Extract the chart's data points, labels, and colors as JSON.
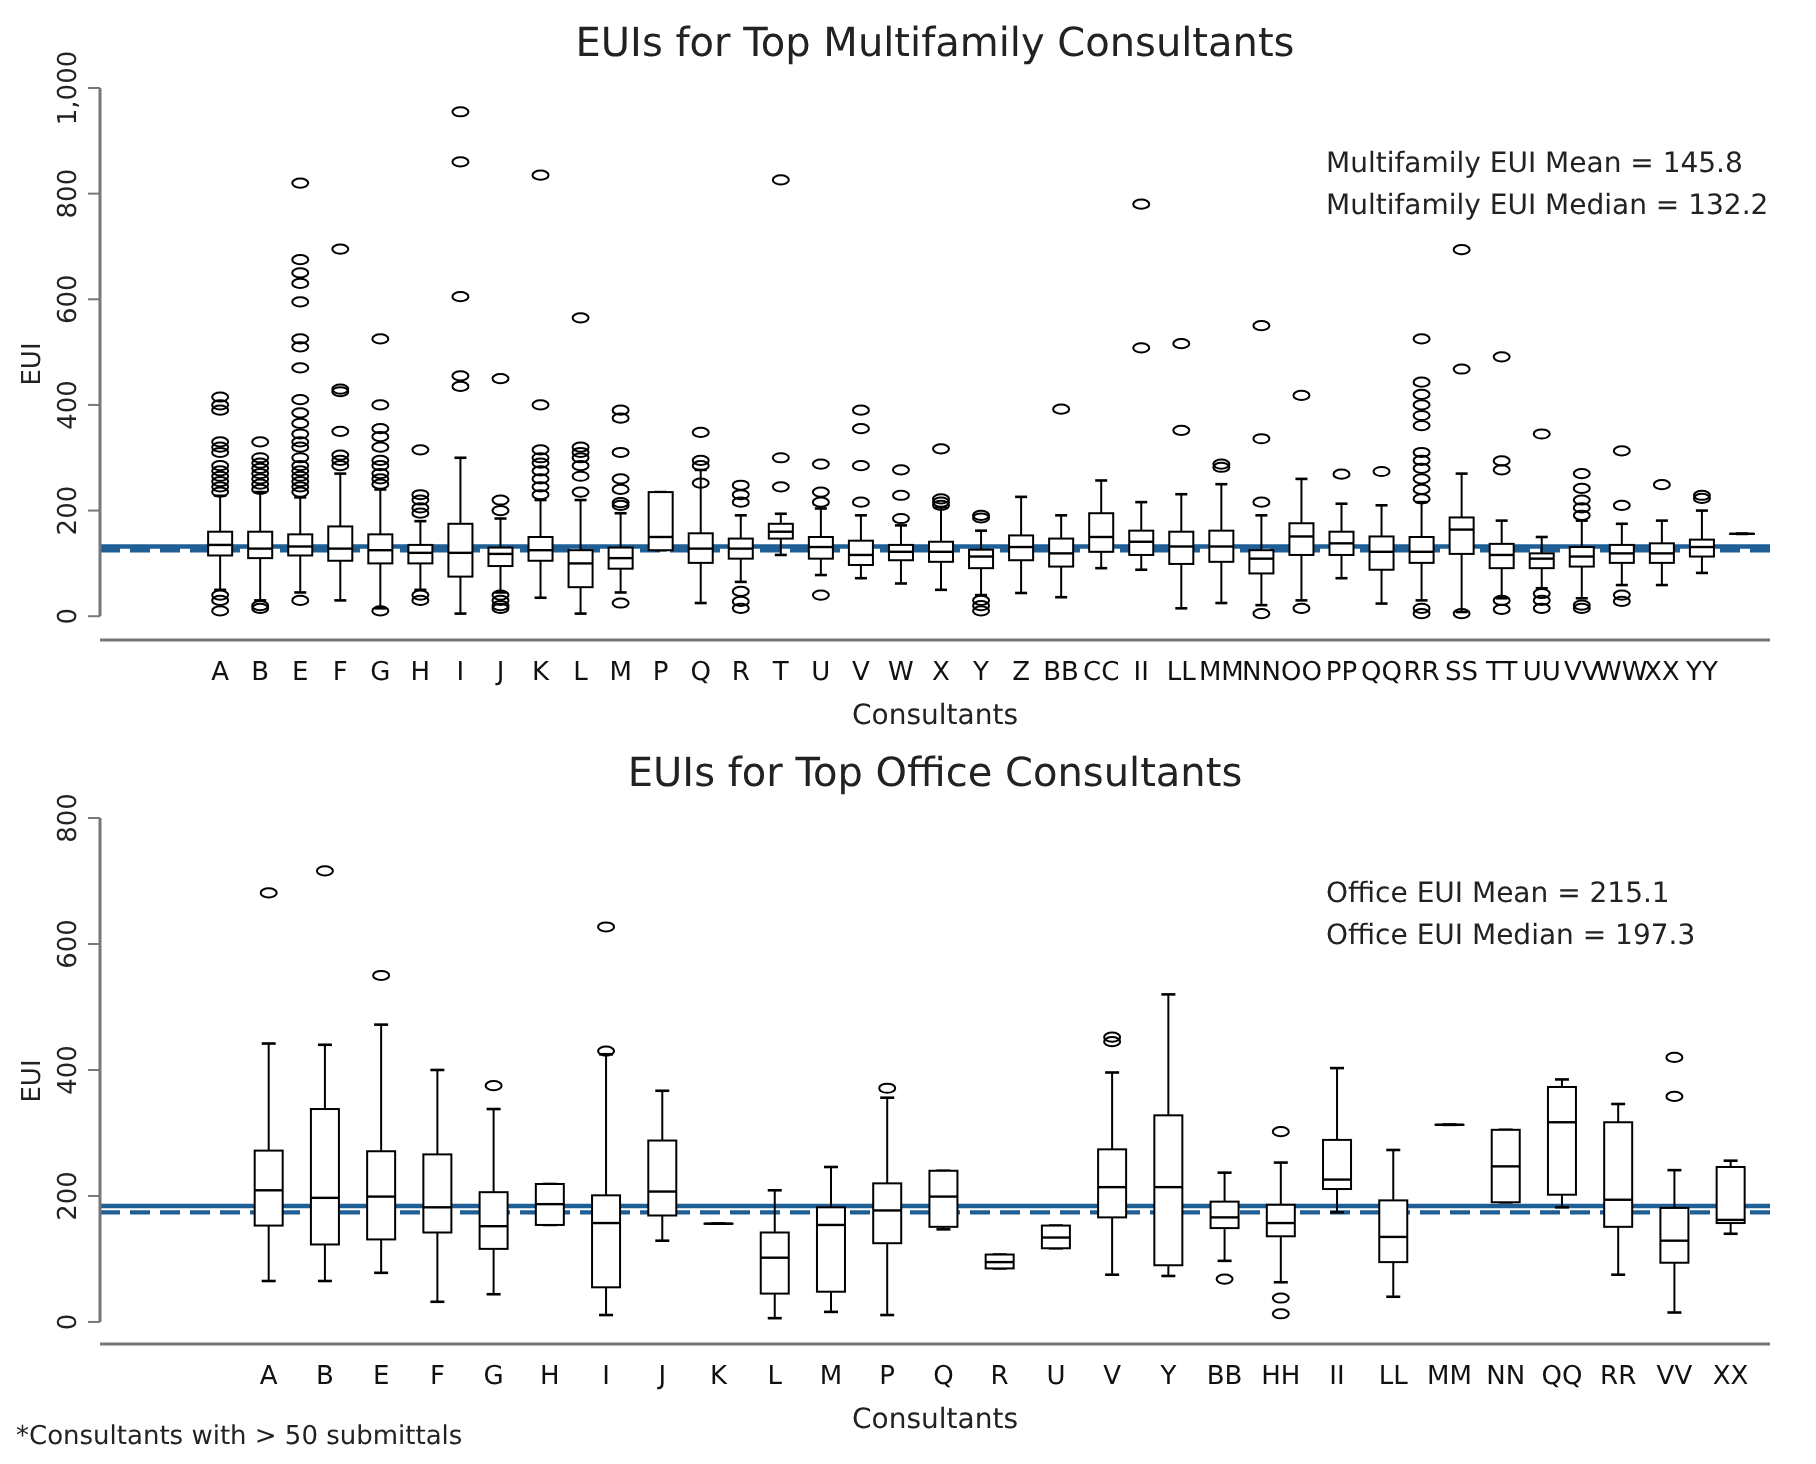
{
  "chart_data": [
    {
      "type": "box",
      "title": "EUIs for Top Multifamily Consultants",
      "xlabel": "Consultants",
      "ylabel": "EUI",
      "categories": [
        "A",
        "B",
        "E",
        "F",
        "G",
        "H",
        "I",
        "J",
        "K",
        "L",
        "M",
        "P",
        "Q",
        "R",
        "T",
        "U",
        "V",
        "W",
        "X",
        "Y",
        "Z",
        "BB",
        "CC",
        "II",
        "LL",
        "MM",
        "NN",
        "OO",
        "PP",
        "QQ",
        "RR",
        "SS",
        "TT",
        "UU",
        "VV",
        "WW",
        "XX",
        "YY",
        null
      ],
      "boxes": [
        {
          "low": 50,
          "q1": 115,
          "median": 135,
          "q3": 160,
          "high": 228,
          "outliers": [
            10,
            30,
            40,
            235,
            245,
            255,
            265,
            275,
            285,
            310,
            320,
            330,
            390,
            400,
            415
          ]
        },
        {
          "low": 30,
          "q1": 110,
          "median": 128,
          "q3": 160,
          "high": 235,
          "outliers": [
            15,
            20,
            240,
            250,
            260,
            270,
            280,
            290,
            300,
            330
          ]
        },
        {
          "low": 45,
          "q1": 115,
          "median": 132,
          "q3": 155,
          "high": 225,
          "outliers": [
            30,
            235,
            245,
            255,
            265,
            275,
            285,
            300,
            320,
            330,
            345,
            365,
            385,
            410,
            470,
            510,
            525,
            595,
            630,
            650,
            675,
            820
          ]
        },
        {
          "low": 30,
          "q1": 105,
          "median": 128,
          "q3": 170,
          "high": 270,
          "outliers": [
            285,
            295,
            305,
            350,
            425,
            430,
            695
          ]
        },
        {
          "low": 15,
          "q1": 100,
          "median": 125,
          "q3": 155,
          "high": 240,
          "outliers": [
            10,
            250,
            260,
            270,
            285,
            295,
            320,
            340,
            355,
            400,
            525
          ]
        },
        {
          "low": 50,
          "q1": 100,
          "median": 120,
          "q3": 135,
          "high": 180,
          "outliers": [
            30,
            40,
            195,
            205,
            220,
            230,
            315
          ]
        },
        {
          "low": 5,
          "q1": 75,
          "median": 120,
          "q3": 175,
          "high": 300,
          "outliers": [
            435,
            455,
            605,
            860,
            955
          ]
        },
        {
          "low": 45,
          "q1": 95,
          "median": 118,
          "q3": 130,
          "high": 185,
          "outliers": [
            15,
            20,
            30,
            40,
            200,
            220,
            450
          ]
        },
        {
          "low": 35,
          "q1": 105,
          "median": 125,
          "q3": 150,
          "high": 220,
          "outliers": [
            230,
            245,
            260,
            275,
            290,
            300,
            315,
            400,
            835
          ]
        },
        {
          "low": 5,
          "q1": 55,
          "median": 100,
          "q3": 125,
          "high": 220,
          "outliers": [
            235,
            265,
            285,
            300,
            310,
            320,
            565
          ]
        },
        {
          "low": 45,
          "q1": 90,
          "median": 110,
          "q3": 130,
          "high": 195,
          "outliers": [
            25,
            210,
            215,
            240,
            260,
            310,
            375,
            390
          ]
        },
        {
          "low": 125,
          "q1": 125,
          "median": 150,
          "q3": 235,
          "high": 235
        },
        {
          "low": 25,
          "q1": 101,
          "median": 128,
          "q3": 157,
          "high": 277,
          "outliers": [
            252,
            285,
            295,
            348
          ]
        },
        {
          "low": 65,
          "q1": 109,
          "median": 128,
          "q3": 147,
          "high": 191,
          "outliers": [
            15,
            28,
            47,
            216,
            230,
            248
          ]
        },
        {
          "low": 116,
          "q1": 147,
          "median": 160,
          "q3": 175,
          "high": 194,
          "outliers": [
            245,
            300,
            826
          ]
        },
        {
          "low": 78,
          "q1": 109,
          "median": 131,
          "q3": 150,
          "high": 204,
          "outliers": [
            40,
            216,
            235,
            288
          ]
        },
        {
          "low": 72,
          "q1": 97,
          "median": 116,
          "q3": 143,
          "high": 191,
          "outliers": [
            216,
            285,
            355,
            390
          ]
        },
        {
          "low": 62,
          "q1": 106,
          "median": 122,
          "q3": 135,
          "high": 172,
          "outliers": [
            185,
            229,
            277
          ]
        },
        {
          "low": 50,
          "q1": 103,
          "median": 122,
          "q3": 141,
          "high": 206,
          "outliers": [
            210,
            216,
            222,
            317
          ]
        },
        {
          "low": 40,
          "q1": 91,
          "median": 113,
          "q3": 126,
          "high": 162,
          "outliers": [
            10,
            20,
            30,
            186,
            191
          ]
        },
        {
          "low": 44,
          "q1": 106,
          "median": 131,
          "q3": 153,
          "high": 226
        },
        {
          "low": 36,
          "q1": 94,
          "median": 119,
          "q3": 147,
          "high": 191,
          "outliers": [
            392
          ]
        },
        {
          "low": 91,
          "q1": 122,
          "median": 150,
          "q3": 195,
          "high": 257
        },
        {
          "low": 88,
          "q1": 116,
          "median": 141,
          "q3": 162,
          "high": 216,
          "outliers": [
            508,
            780
          ]
        },
        {
          "low": 15,
          "q1": 99,
          "median": 132,
          "q3": 160,
          "high": 231,
          "outliers": [
            352,
            516
          ]
        },
        {
          "low": 25,
          "q1": 103,
          "median": 132,
          "q3": 162,
          "high": 250,
          "outliers": [
            282,
            288
          ]
        },
        {
          "low": 21,
          "q1": 81,
          "median": 109,
          "q3": 125,
          "high": 191,
          "outliers": [
            5,
            216,
            336,
            550
          ]
        },
        {
          "low": 30,
          "q1": 116,
          "median": 151,
          "q3": 176,
          "high": 260,
          "outliers": [
            15,
            418
          ]
        },
        {
          "low": 72,
          "q1": 116,
          "median": 138,
          "q3": 160,
          "high": 213,
          "outliers": [
            269
          ]
        },
        {
          "low": 24,
          "q1": 88,
          "median": 122,
          "q3": 151,
          "high": 210,
          "outliers": [
            274
          ]
        },
        {
          "low": 30,
          "q1": 101,
          "median": 122,
          "q3": 150,
          "high": 216,
          "outliers": [
            5,
            15,
            222,
            240,
            260,
            280,
            295,
            310,
            361,
            380,
            400,
            420,
            443,
            525
          ]
        },
        {
          "low": 8,
          "q1": 118,
          "median": 164,
          "q3": 187,
          "high": 270,
          "outliers": [
            5,
            468,
            694
          ]
        },
        {
          "low": 34,
          "q1": 91,
          "median": 116,
          "q3": 137,
          "high": 181,
          "outliers": [
            13,
            30,
            277,
            294,
            491
          ]
        },
        {
          "low": 53,
          "q1": 91,
          "median": 109,
          "q3": 119,
          "high": 150,
          "outliers": [
            15,
            30,
            43,
            345
          ]
        },
        {
          "low": 34,
          "q1": 94,
          "median": 113,
          "q3": 131,
          "high": 181,
          "outliers": [
            15,
            21,
            191,
            205,
            220,
            242,
            270
          ]
        },
        {
          "low": 59,
          "q1": 101,
          "median": 119,
          "q3": 135,
          "high": 175,
          "outliers": [
            28,
            40,
            210,
            313
          ]
        },
        {
          "low": 59,
          "q1": 101,
          "median": 119,
          "q3": 138,
          "high": 181,
          "outliers": [
            249
          ]
        },
        {
          "low": 82,
          "q1": 113,
          "median": 131,
          "q3": 145,
          "high": 200,
          "outliers": [
            223,
            229
          ]
        },
        {
          "low": 156,
          "q1": 156,
          "median": 156,
          "q3": 156,
          "high": 156
        }
      ],
      "ylim": [
        -45,
        1000
      ],
      "yticks": [
        0,
        200,
        400,
        600,
        800,
        {
          "value": 1000,
          "label": "1,000"
        }
      ],
      "ref_lines": [
        {
          "axis": "y",
          "value": 132,
          "label": null,
          "color": "#1f5f96",
          "line_style": "solid"
        },
        {
          "axis": "y",
          "value": 125,
          "label": null,
          "color": "#1f5f96",
          "line_style": "dashed"
        }
      ],
      "annotations": [
        "Multifamily EUI Mean = 145.8",
        "Multifamily EUI Median = 132.2"
      ]
    },
    {
      "type": "box",
      "title": "EUIs for Top Office Consultants",
      "xlabel": "Consultants",
      "ylabel": "EUI",
      "categories": [
        "A",
        "B",
        "E",
        "F",
        "G",
        "H",
        "I",
        "J",
        "K",
        "L",
        "M",
        "P",
        "Q",
        "R",
        "U",
        "V",
        "Y",
        "BB",
        "HH",
        "II",
        "LL",
        "MM",
        "NN",
        "QQ",
        "RR",
        "VV",
        "XX"
      ],
      "boxes": [
        {
          "low": 65,
          "q1": 153,
          "median": 209,
          "q3": 272,
          "high": 442,
          "outliers": [
            681
          ]
        },
        {
          "low": 65,
          "q1": 123,
          "median": 197,
          "q3": 338,
          "high": 440,
          "outliers": [
            716
          ]
        },
        {
          "low": 78,
          "q1": 131,
          "median": 199,
          "q3": 271,
          "high": 472,
          "outliers": [
            550
          ]
        },
        {
          "low": 32,
          "q1": 142,
          "median": 182,
          "q3": 266,
          "high": 400
        },
        {
          "low": 44,
          "q1": 116,
          "median": 152,
          "q3": 206,
          "high": 338,
          "outliers": [
            375
          ]
        },
        {
          "low": 154,
          "q1": 154,
          "median": 187,
          "q3": 219,
          "high": 219
        },
        {
          "low": 11,
          "q1": 55,
          "median": 157,
          "q3": 201,
          "high": 425,
          "outliers": [
            430,
            627
          ]
        },
        {
          "low": 129,
          "q1": 169,
          "median": 207,
          "q3": 288,
          "high": 367
        },
        {
          "low": 156,
          "q1": 156,
          "median": 156,
          "q3": 156,
          "high": 156
        },
        {
          "low": 6,
          "q1": 45,
          "median": 102,
          "q3": 142,
          "high": 209
        },
        {
          "low": 16,
          "q1": 48,
          "median": 154,
          "q3": 182,
          "high": 246
        },
        {
          "low": 11,
          "q1": 125,
          "median": 177,
          "q3": 220,
          "high": 356,
          "outliers": [
            371
          ]
        },
        {
          "low": 147,
          "q1": 151,
          "median": 199,
          "q3": 240,
          "high": 240
        },
        {
          "low": 85,
          "q1": 85,
          "median": 95,
          "q3": 107,
          "high": 107
        },
        {
          "low": 117,
          "q1": 117,
          "median": 134,
          "q3": 153,
          "high": 153
        },
        {
          "low": 75,
          "q1": 166,
          "median": 214,
          "q3": 274,
          "high": 396,
          "outliers": [
            445,
            452
          ]
        },
        {
          "low": 73,
          "q1": 90,
          "median": 214,
          "q3": 328,
          "high": 520
        },
        {
          "low": 97,
          "q1": 149,
          "median": 166,
          "q3": 191,
          "high": 237,
          "outliers": [
            68
          ]
        },
        {
          "low": 63,
          "q1": 136,
          "median": 157,
          "q3": 186,
          "high": 253,
          "outliers": [
            13,
            38,
            302
          ]
        },
        {
          "low": 174,
          "q1": 211,
          "median": 226,
          "q3": 289,
          "high": 403
        },
        {
          "low": 40,
          "q1": 95,
          "median": 135,
          "q3": 193,
          "high": 273
        },
        {
          "low": 313,
          "q1": 313,
          "median": 313,
          "q3": 313,
          "high": 313
        },
        {
          "low": 190,
          "q1": 190,
          "median": 247,
          "q3": 305,
          "high": 305
        },
        {
          "low": 182,
          "q1": 202,
          "median": 317,
          "q3": 373,
          "high": 385
        },
        {
          "low": 75,
          "q1": 151,
          "median": 194,
          "q3": 317,
          "high": 346
        },
        {
          "low": 15,
          "q1": 94,
          "median": 129,
          "q3": 181,
          "high": 241,
          "outliers": [
            358,
            420
          ]
        },
        {
          "low": 140,
          "q1": 157,
          "median": 162,
          "q3": 246,
          "high": 256
        }
      ],
      "ylim": [
        -35,
        800
      ],
      "yticks": [
        0,
        200,
        400,
        600,
        800
      ],
      "ref_lines": [
        {
          "axis": "y",
          "value": 184,
          "label": null,
          "color": "#1f5f96",
          "line_style": "solid"
        },
        {
          "axis": "y",
          "value": 174,
          "label": null,
          "color": "#1f5f96",
          "line_style": "dashed"
        }
      ],
      "annotations": [
        "Office EUI Mean = 215.1",
        "Office EUI Median = 197.3",
        "*Consultants with > 50 submittals"
      ]
    }
  ]
}
